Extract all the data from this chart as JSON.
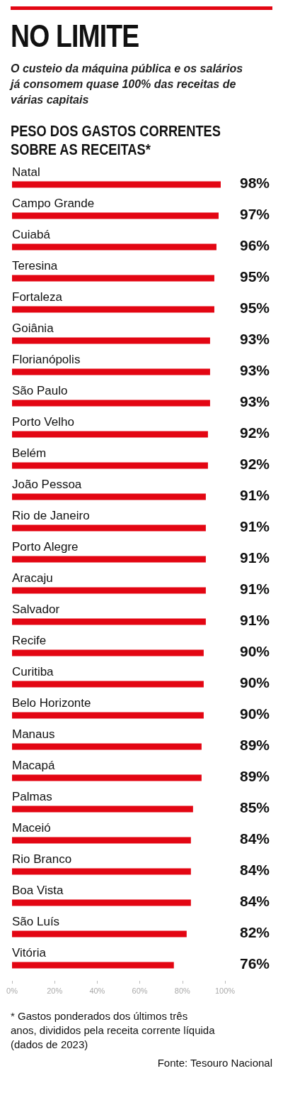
{
  "chart_data": {
    "type": "bar",
    "orientation": "horizontal",
    "title": "NO LIMITE",
    "subtitle": "O custeio da máquina pública e os salários já consomem quase 100% das receitas de várias capitais",
    "annotations": [
      "PESO DOS GASTOS CORRENTES SOBRE AS RECEITAS*",
      "* Gastos ponderados dos últimos três anos, divididos pela receita corrente líquida (dados de 2023)",
      "Fonte: Tesouro Nacional"
    ],
    "categories": [
      "Natal",
      "Campo Grande",
      "Cuiabá",
      "Teresina",
      "Fortaleza",
      "Goiânia",
      "Florianópolis",
      "São Paulo",
      "Porto Velho",
      "Belém",
      "João Pessoa",
      "Rio de Janeiro",
      "Porto Alegre",
      "Aracaju",
      "Salvador",
      "Recife",
      "Curitiba",
      "Belo Horizonte",
      "Manaus",
      "Macapá",
      "Palmas",
      "Maceió",
      "Rio Branco",
      "Boa Vista",
      "São Luís",
      "Vitória"
    ],
    "values": [
      98,
      97,
      96,
      95,
      95,
      93,
      93,
      93,
      92,
      92,
      91,
      91,
      91,
      91,
      91,
      90,
      90,
      90,
      89,
      89,
      85,
      84,
      84,
      84,
      82,
      76
    ],
    "value_labels": [
      "98%",
      "97%",
      "96%",
      "95%",
      "95%",
      "93%",
      "93%",
      "93%",
      "92%",
      "92%",
      "91%",
      "91%",
      "91%",
      "91%",
      "91%",
      "90%",
      "90%",
      "90%",
      "89%",
      "89%",
      "85%",
      "84%",
      "84%",
      "84%",
      "82%",
      "76%"
    ],
    "color": "#e30613",
    "xlim": [
      0,
      100
    ],
    "xticks": [
      {
        "value": 0,
        "label": "0%"
      },
      {
        "value": 20,
        "label": "20%"
      },
      {
        "value": 40,
        "label": "40%"
      },
      {
        "value": 60,
        "label": "60%"
      },
      {
        "value": 80,
        "label": "80%"
      },
      {
        "value": 100,
        "label": "100%"
      }
    ],
    "grid": false
  }
}
